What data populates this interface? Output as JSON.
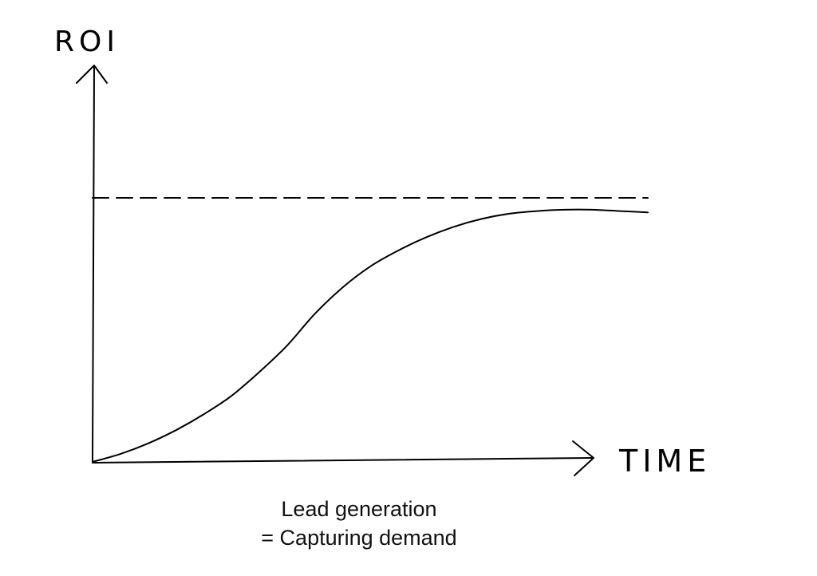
{
  "chart_data": {
    "type": "line",
    "title": "",
    "xlabel": "TIME",
    "ylabel": "ROI",
    "x_ticks": [],
    "y_ticks": [],
    "grid": false,
    "legend": "none",
    "series": [
      {
        "style": "solid",
        "shape": "s-curve",
        "x": [
          0,
          0.05,
          0.1,
          0.15,
          0.2,
          0.25,
          0.3,
          0.35,
          0.4,
          0.45,
          0.5,
          0.55,
          0.6,
          0.65,
          0.7,
          0.75,
          0.8,
          0.85,
          0.9,
          0.95,
          1.0
        ],
        "y": [
          0,
          0.03,
          0.07,
          0.12,
          0.18,
          0.25,
          0.34,
          0.44,
          0.56,
          0.66,
          0.74,
          0.8,
          0.85,
          0.89,
          0.92,
          0.94,
          0.95,
          0.955,
          0.955,
          0.95,
          0.945
        ]
      },
      {
        "style": "dashed",
        "shape": "horizontal-asymptote",
        "x": [
          0,
          1.0
        ],
        "y": [
          1.0,
          1.0
        ]
      }
    ],
    "xlim": [
      0,
      1.0
    ],
    "ylim": [
      0,
      1.0
    ]
  },
  "caption": {
    "line1": "Lead generation",
    "line2": "= Capturing demand"
  },
  "colors": {
    "ink": "#000000",
    "background": "#ffffff"
  }
}
